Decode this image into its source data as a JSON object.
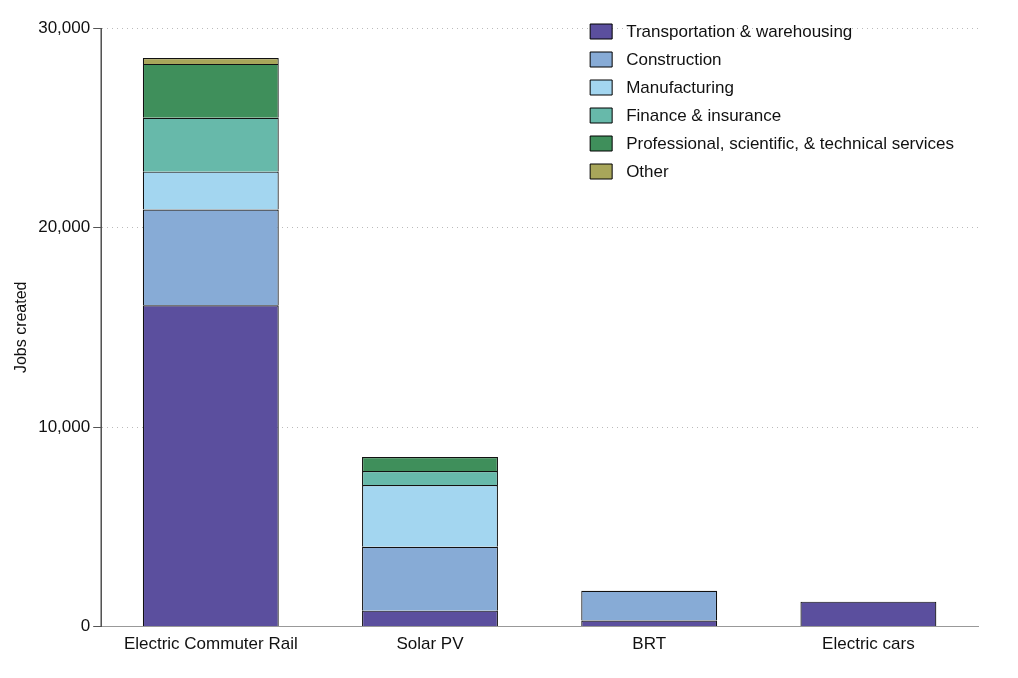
{
  "chart_data": {
    "type": "bar",
    "stacked": true,
    "ylabel": "Jobs created",
    "categories": [
      "Electric Commuter Rail",
      "Solar PV",
      "BRT",
      "Electric cars"
    ],
    "series": [
      {
        "name": "Transportation & warehousing",
        "color": "#5b4f9e",
        "values": [
          16100,
          800,
          300,
          1250
        ]
      },
      {
        "name": "Construction",
        "color": "#87abd6",
        "values": [
          4800,
          3200,
          1500,
          0
        ]
      },
      {
        "name": "Manufacturing",
        "color": "#a3d6f0",
        "values": [
          1900,
          3100,
          0,
          0
        ]
      },
      {
        "name": "Finance & insurance",
        "color": "#67b9aa",
        "values": [
          2700,
          700,
          0,
          0
        ]
      },
      {
        "name": "Professional, scientific, & technical services",
        "color": "#3f8f5b",
        "values": [
          2700,
          700,
          0,
          0
        ]
      },
      {
        "name": "Other",
        "color": "#a8a65a",
        "values": [
          300,
          0,
          0,
          0
        ]
      }
    ],
    "ylim": [
      0,
      30000
    ],
    "yticks": [
      {
        "value": 0,
        "label": "0"
      },
      {
        "value": 10000,
        "label": "10,000"
      },
      {
        "value": 20000,
        "label": "20,000"
      },
      {
        "value": 30000,
        "label": "30,000"
      }
    ],
    "grid": "y",
    "legend": "top right"
  }
}
